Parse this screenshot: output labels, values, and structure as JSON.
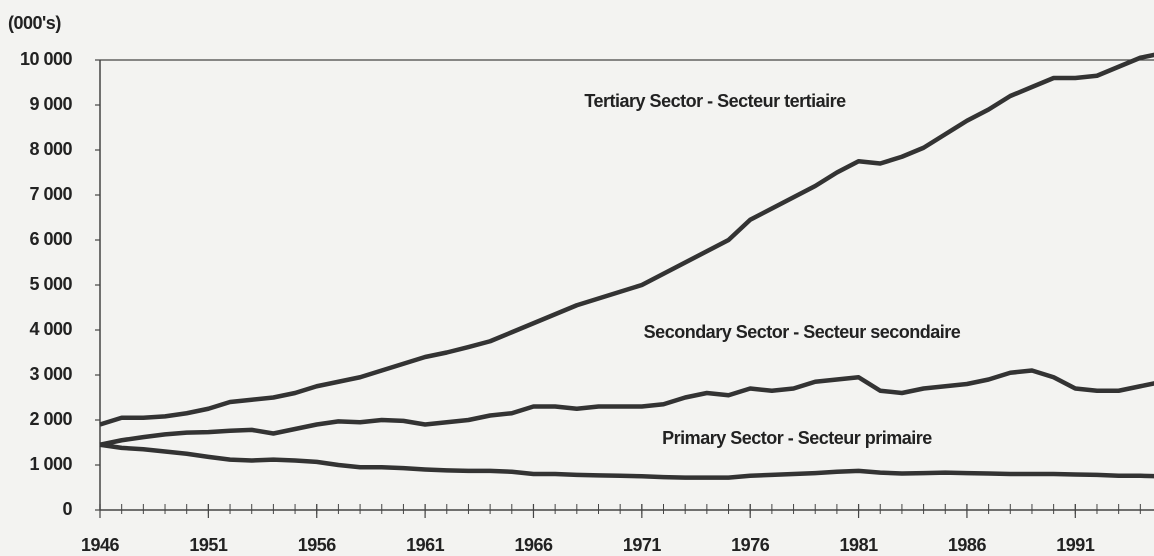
{
  "chart_data": {
    "type": "line",
    "y_unit_label": "(000's)",
    "annotations": [
      "Tertiary Sector - Secteur tertiaire",
      "Secondary Sector - Secteur secondaire",
      "Primary Sector - Secteur primaire"
    ],
    "x": [
      1946,
      1947,
      1948,
      1949,
      1950,
      1951,
      1952,
      1953,
      1954,
      1955,
      1956,
      1957,
      1958,
      1959,
      1960,
      1961,
      1962,
      1963,
      1964,
      1965,
      1966,
      1967,
      1968,
      1969,
      1970,
      1971,
      1972,
      1973,
      1974,
      1975,
      1976,
      1977,
      1978,
      1979,
      1980,
      1981,
      1982,
      1983,
      1984,
      1985,
      1986,
      1987,
      1988,
      1989,
      1990,
      1991,
      1992,
      1993,
      1994,
      1995
    ],
    "series": [
      {
        "name": "Tertiary Sector - Secteur tertiaire",
        "color": "#333333",
        "values": [
          1900,
          2050,
          2050,
          2080,
          2150,
          2250,
          2400,
          2450,
          2500,
          2600,
          2750,
          2850,
          2950,
          3100,
          3250,
          3400,
          3500,
          3620,
          3750,
          3950,
          4150,
          4350,
          4550,
          4700,
          4850,
          5000,
          5250,
          5500,
          5750,
          6000,
          6450,
          6700,
          6950,
          7200,
          7500,
          7750,
          7700,
          7850,
          8050,
          8350,
          8650,
          8900,
          9200,
          9400,
          9600,
          9600,
          9650,
          9850,
          10050,
          10150
        ]
      },
      {
        "name": "Secondary Sector - Secteur secondaire",
        "color": "#333333",
        "values": [
          1450,
          1550,
          1620,
          1680,
          1720,
          1730,
          1760,
          1780,
          1700,
          1800,
          1900,
          1970,
          1950,
          2000,
          1980,
          1900,
          1950,
          2000,
          2100,
          2150,
          2300,
          2300,
          2250,
          2300,
          2300,
          2300,
          2350,
          2500,
          2600,
          2550,
          2700,
          2650,
          2700,
          2850,
          2900,
          2950,
          2650,
          2600,
          2700,
          2750,
          2800,
          2900,
          3050,
          3100,
          2950,
          2700,
          2650,
          2650,
          2750,
          2850
        ]
      },
      {
        "name": "Primary Sector - Secteur primaire",
        "color": "#333333",
        "values": [
          1450,
          1380,
          1350,
          1300,
          1250,
          1180,
          1120,
          1100,
          1120,
          1100,
          1070,
          1000,
          950,
          950,
          930,
          900,
          880,
          870,
          870,
          850,
          800,
          800,
          780,
          770,
          760,
          750,
          730,
          720,
          720,
          720,
          760,
          780,
          800,
          820,
          850,
          870,
          830,
          810,
          820,
          830,
          820,
          810,
          800,
          800,
          800,
          790,
          780,
          760,
          760,
          750
        ]
      }
    ],
    "xlim": [
      1946,
      1995
    ],
    "xticks": [
      1946,
      1951,
      1956,
      1961,
      1966,
      1971,
      1976,
      1981,
      1986,
      1991
    ],
    "ylim": [
      0,
      10000
    ],
    "yticks": [
      0,
      {
        "value": 1000,
        "label": "1 000"
      },
      {
        "value": 2000,
        "label": "2 000"
      },
      {
        "value": 3000,
        "label": "3 000"
      },
      {
        "value": 4000,
        "label": "4 000"
      },
      {
        "value": 5000,
        "label": "5 000"
      },
      {
        "value": 6000,
        "label": "6 000"
      },
      {
        "value": 7000,
        "label": "7 000"
      },
      {
        "value": 8000,
        "label": "8 000"
      },
      {
        "value": 9000,
        "label": "9 000"
      },
      {
        "value": 10000,
        "label": "10 000"
      }
    ]
  }
}
